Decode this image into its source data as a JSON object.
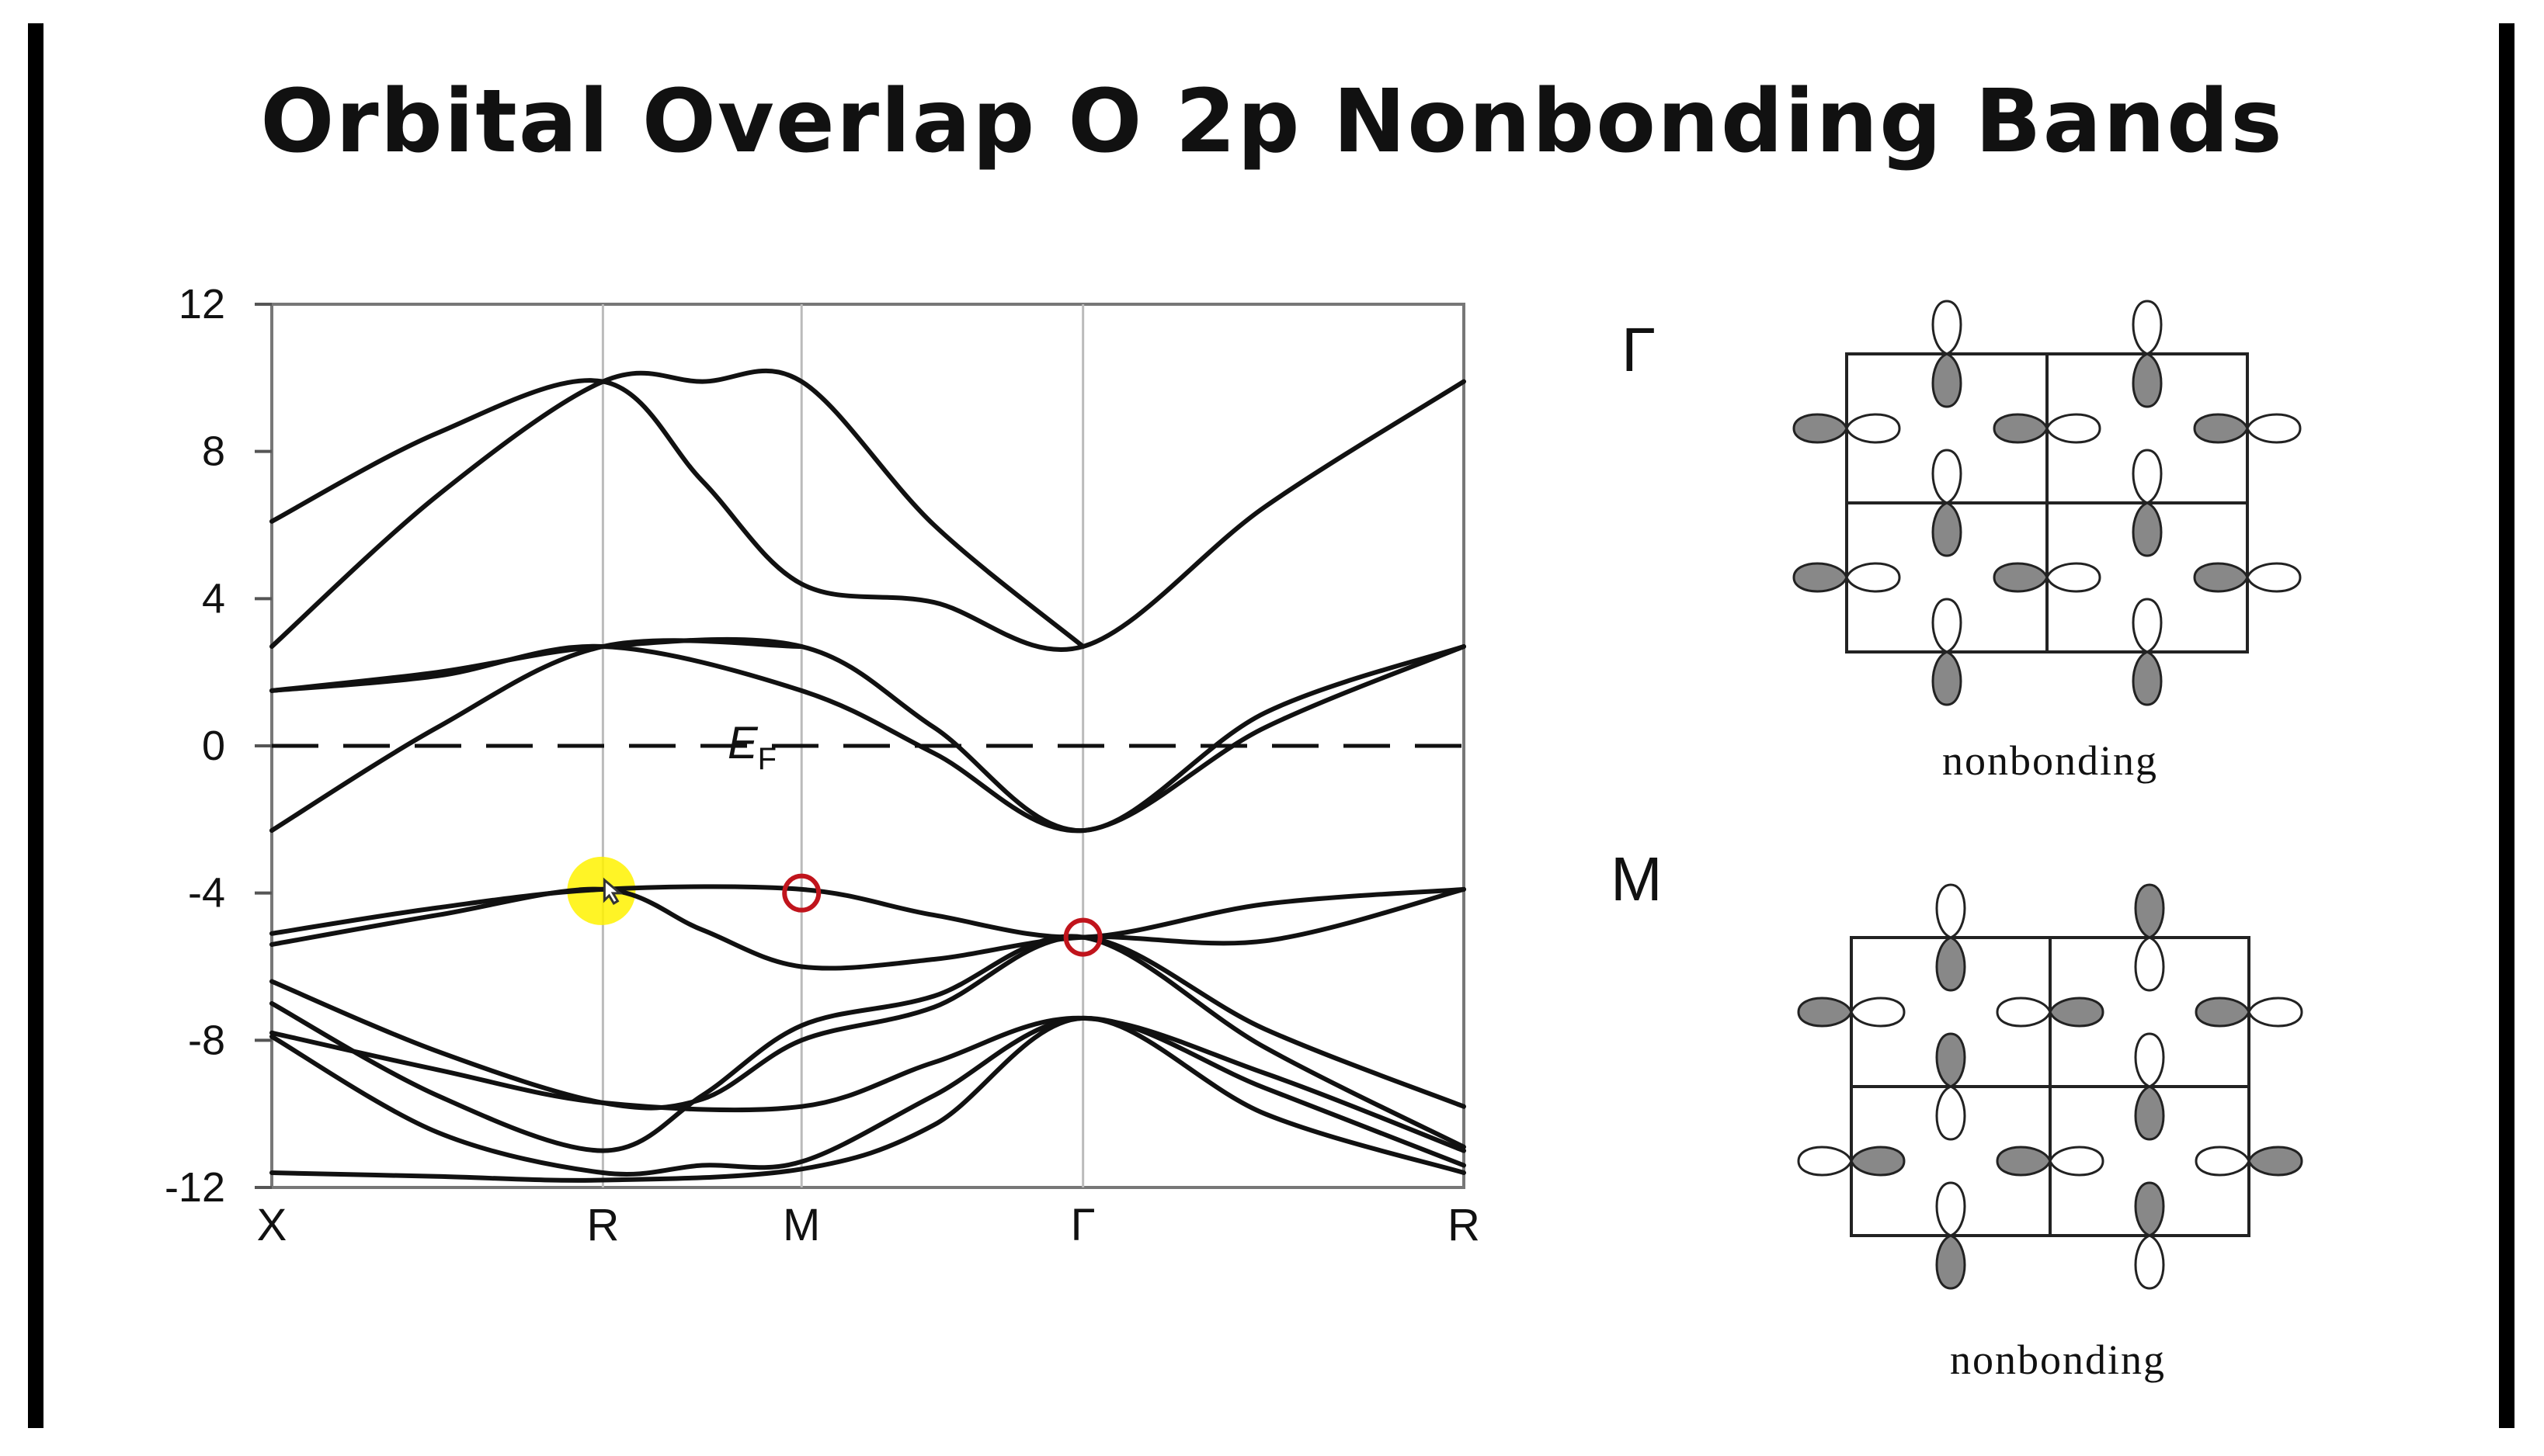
{
  "title": "Orbital Overlap O 2p Nonbonding Bands",
  "colors": {
    "band_line": "#111111",
    "highlight": "#fff200",
    "marker": "#c0141c",
    "lobe_shaded": "#888888"
  },
  "band_plot": {
    "y_ticks": [
      "12",
      "8",
      "4",
      "0",
      "-4",
      "-8",
      "-12"
    ],
    "y_tick_values": [
      12,
      8,
      4,
      0,
      -4,
      -8,
      -12
    ],
    "ylim": [
      -12,
      12
    ],
    "k_points": [
      "X",
      "R",
      "M",
      "Γ",
      "R"
    ],
    "k_positions": [
      0,
      1,
      1.6,
      2.45,
      3.6
    ],
    "fermi_label": "E",
    "fermi_subscript": "F",
    "fermi_level": 0,
    "bands": [
      {
        "x": [
          0,
          0.5,
          1,
          1.3,
          1.6,
          2.0,
          2.45,
          3.0,
          3.6
        ],
        "y": [
          6.1,
          8.5,
          9.9,
          7.2,
          4.4,
          3.9,
          2.7,
          6.5,
          9.9
        ]
      },
      {
        "x": [
          0,
          0.5,
          1,
          1.3,
          1.6,
          2.0,
          2.45
        ],
        "y": [
          2.7,
          6.8,
          9.9,
          9.9,
          9.9,
          6.0,
          2.7
        ]
      },
      {
        "x": [
          0,
          0.5,
          1,
          1.6,
          2.0,
          2.45,
          3.0,
          3.6
        ],
        "y": [
          1.5,
          1.9,
          2.7,
          1.5,
          -0.2,
          -2.3,
          0.5,
          2.7
        ]
      },
      {
        "x": [
          0,
          0.5,
          1,
          1.6,
          2.0,
          2.45,
          3.0,
          3.6
        ],
        "y": [
          1.5,
          2.0,
          2.7,
          2.7,
          0.5,
          -2.3,
          0.9,
          2.7
        ]
      },
      {
        "x": [
          0,
          0.5,
          1,
          1.6
        ],
        "y": [
          -2.3,
          0.5,
          2.7,
          2.7
        ]
      },
      {
        "x": [
          0,
          0.5,
          1,
          1.6,
          2.0,
          2.45,
          3.0,
          3.6
        ],
        "y": [
          -5.1,
          -4.4,
          -3.9,
          -3.9,
          -4.6,
          -5.2,
          -4.3,
          -3.9
        ]
      },
      {
        "x": [
          0,
          0.5,
          1,
          1.3,
          1.6,
          2.0,
          2.45,
          3.0,
          3.6
        ],
        "y": [
          -5.4,
          -4.6,
          -3.9,
          -5.0,
          -6.0,
          -5.8,
          -5.2,
          -5.3,
          -3.9
        ]
      },
      {
        "x": [
          0,
          0.5,
          1,
          1.3,
          1.6,
          2.0,
          2.45,
          3.0,
          3.6
        ],
        "y": [
          -6.4,
          -8.3,
          -9.7,
          -9.6,
          -8.0,
          -7.1,
          -5.2,
          -7.7,
          -9.8
        ]
      },
      {
        "x": [
          0,
          0.5,
          1,
          1.3,
          1.6,
          2.0,
          2.45,
          3.0,
          3.6
        ],
        "y": [
          -7.0,
          -9.5,
          -11.0,
          -9.5,
          -7.6,
          -6.8,
          -5.2,
          -8.2,
          -10.9
        ]
      },
      {
        "x": [
          0,
          0.5,
          1,
          1.6,
          2.0,
          2.45,
          3.0,
          3.6
        ],
        "y": [
          -7.8,
          -8.8,
          -9.7,
          -9.8,
          -8.6,
          -7.4,
          -8.9,
          -11.0
        ]
      },
      {
        "x": [
          0,
          0.5,
          1,
          1.3,
          1.6,
          2.0,
          2.45,
          3.0,
          3.6
        ],
        "y": [
          -7.9,
          -10.5,
          -11.6,
          -11.4,
          -11.3,
          -9.5,
          -7.4,
          -9.3,
          -11.4
        ]
      },
      {
        "x": [
          0,
          0.5,
          1,
          1.6,
          2.0,
          2.45,
          3.0,
          3.6
        ],
        "y": [
          -11.6,
          -11.7,
          -11.8,
          -11.5,
          -10.3,
          -7.4,
          -10.0,
          -11.6
        ]
      }
    ],
    "highlight_point": {
      "x": 1.0,
      "y": -3.9
    },
    "circled_points": [
      {
        "x": 1.6,
        "y": -4.0
      },
      {
        "x": 2.45,
        "y": -5.2
      }
    ]
  },
  "orbital_panels": [
    {
      "label": "Γ",
      "caption": "nonbonding",
      "pattern": "gamma"
    },
    {
      "label": "M",
      "caption": "nonbonding",
      "pattern": "m"
    }
  ]
}
